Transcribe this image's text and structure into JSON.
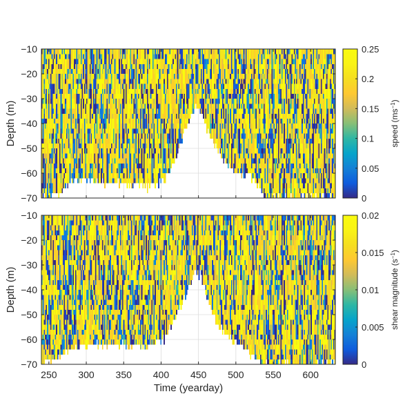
{
  "chart_data": [
    {
      "type": "heatmap",
      "panel": "top",
      "xlabel": "",
      "ylabel": "Depth (m)",
      "xlim": [
        240,
        633
      ],
      "ylim": [
        -70,
        -10
      ],
      "xticks": [
        250,
        300,
        350,
        400,
        450,
        500,
        550,
        600
      ],
      "xticklabels": [],
      "yticks": [
        -10,
        -20,
        -30,
        -40,
        -50,
        -60,
        -70
      ],
      "grid": true,
      "colormap": "parula",
      "colorbar": {
        "label": "speed (ms⁻¹)",
        "label_parts": [
          "speed (ms",
          "−1",
          ")"
        ],
        "range": [
          0,
          0.25
        ],
        "ticks": [
          0,
          0.05,
          0.1,
          0.15,
          0.2,
          0.25
        ],
        "ticklabels": [
          "0",
          "0.05",
          "0.1",
          "0.15",
          "0.2",
          "0.25"
        ]
      },
      "x_columns": [
        240,
        633,
        1.5
      ],
      "depth_rows": [
        -70,
        -10,
        2
      ],
      "coverage_bottom_depth": [
        [
          240,
          -70
        ],
        [
          262,
          -69
        ],
        [
          280,
          -64
        ],
        [
          300,
          -63
        ],
        [
          340,
          -64
        ],
        [
          380,
          -66
        ],
        [
          405,
          -63
        ],
        [
          410,
          -60
        ],
        [
          420,
          -54
        ],
        [
          430,
          -44
        ],
        [
          440,
          -38
        ],
        [
          446,
          -33
        ],
        [
          452,
          -34
        ],
        [
          458,
          -39
        ],
        [
          465,
          -45
        ],
        [
          475,
          -50
        ],
        [
          485,
          -56
        ],
        [
          495,
          -58
        ],
        [
          505,
          -60
        ],
        [
          520,
          -62
        ],
        [
          532,
          -66
        ],
        [
          540,
          -70
        ],
        [
          633,
          -70
        ]
      ],
      "value_mix": {
        "high_fraction": 0.6,
        "low_fraction": 0.3,
        "mid_fraction": 0.1
      }
    },
    {
      "type": "heatmap",
      "panel": "bottom",
      "xlabel": "Time (yearday)",
      "ylabel": "Depth (m)",
      "xlim": [
        240,
        633
      ],
      "ylim": [
        -70,
        -10
      ],
      "xticks": [
        250,
        300,
        350,
        400,
        450,
        500,
        550,
        600
      ],
      "xticklabels": [
        "250",
        "300",
        "350",
        "400",
        "450",
        "500",
        "550",
        "600"
      ],
      "yticks": [
        -10,
        -20,
        -30,
        -40,
        -50,
        -60,
        -70
      ],
      "grid": true,
      "colormap": "parula",
      "colorbar": {
        "label": "shear magnitude (s⁻¹)",
        "label_parts": [
          "shear magnitude (s",
          "−1",
          ")"
        ],
        "range": [
          0,
          0.02
        ],
        "ticks": [
          0,
          0.005,
          0.01,
          0.015,
          0.02
        ],
        "ticklabels": [
          "0",
          "0.005",
          "0.01",
          "0.015",
          "0.02"
        ]
      },
      "x_columns": [
        240,
        633,
        1.5
      ],
      "depth_rows": [
        -70,
        -10,
        2
      ],
      "coverage_bottom_depth": [
        [
          240,
          -70
        ],
        [
          262,
          -67
        ],
        [
          280,
          -64
        ],
        [
          300,
          -62
        ],
        [
          340,
          -62
        ],
        [
          380,
          -63
        ],
        [
          405,
          -60
        ],
        [
          412,
          -55
        ],
        [
          420,
          -50
        ],
        [
          430,
          -44
        ],
        [
          440,
          -37
        ],
        [
          446,
          -33
        ],
        [
          452,
          -34
        ],
        [
          458,
          -40
        ],
        [
          466,
          -48
        ],
        [
          476,
          -54
        ],
        [
          486,
          -58
        ],
        [
          496,
          -60
        ],
        [
          505,
          -62
        ],
        [
          520,
          -66
        ],
        [
          530,
          -69
        ],
        [
          540,
          -70
        ],
        [
          633,
          -70
        ]
      ],
      "value_mix": {
        "high_fraction": 0.6,
        "low_fraction": 0.3,
        "mid_fraction": 0.1
      }
    }
  ]
}
